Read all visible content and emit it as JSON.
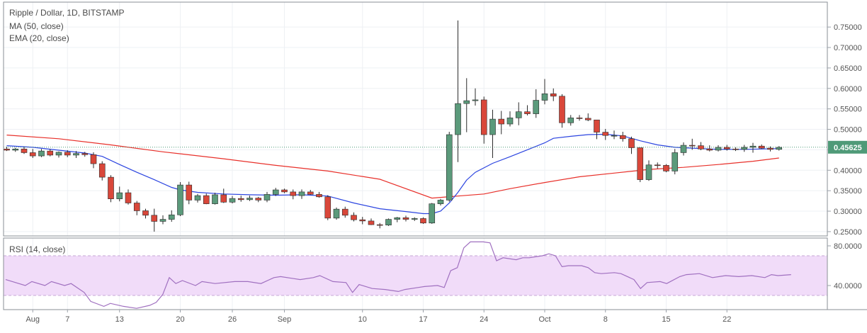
{
  "header": {
    "title": "Ripple / Dollar, 1D, BITSTAMP",
    "ma_label": "MA (50, close)",
    "ema_label": "EMA (20, close)",
    "rsi_label": "RSI (14, close)"
  },
  "colors": {
    "up": "#5b9a7b",
    "down": "#d9473a",
    "ma": "#e8302a",
    "ema": "#2c45e0",
    "rsi": "#a070c0",
    "rsi_band": "#f1dcf9",
    "price_badge": "#4f9a78"
  },
  "chart_data": [
    {
      "type": "candlestick",
      "title": "Ripple / Dollar, 1D, BITSTAMP",
      "ylim": [
        0.215,
        0.775
      ],
      "y_ticks": [
        "0.75000",
        "0.70000",
        "0.65000",
        "0.60000",
        "0.55000",
        "0.50000",
        "0.45000",
        "0.40000",
        "0.35000",
        "0.30000",
        "0.25000"
      ],
      "last_price": "0.45625",
      "x_labels": [
        {
          "label": "Aug",
          "day": 3
        },
        {
          "label": "7",
          "day": 7
        },
        {
          "label": "13",
          "day": 13
        },
        {
          "label": "20",
          "day": 20
        },
        {
          "label": "26",
          "day": 26
        },
        {
          "label": "Sep",
          "day": 32
        },
        {
          "label": "10",
          "day": 41
        },
        {
          "label": "17",
          "day": 48
        },
        {
          "label": "24",
          "day": 55
        },
        {
          "label": "Oct",
          "day": 62
        },
        {
          "label": "8",
          "day": 69
        },
        {
          "label": "15",
          "day": 76
        },
        {
          "label": "22",
          "day": 83
        }
      ],
      "ohlc": [
        [
          0.452,
          0.457,
          0.447,
          0.449
        ],
        [
          0.449,
          0.455,
          0.445,
          0.452
        ],
        [
          0.452,
          0.457,
          0.44,
          0.443
        ],
        [
          0.443,
          0.452,
          0.43,
          0.435
        ],
        [
          0.435,
          0.452,
          0.432,
          0.447
        ],
        [
          0.447,
          0.452,
          0.434,
          0.437
        ],
        [
          0.437,
          0.446,
          0.431,
          0.444
        ],
        [
          0.444,
          0.449,
          0.432,
          0.437
        ],
        [
          0.437,
          0.447,
          0.43,
          0.441
        ],
        [
          0.441,
          0.445,
          0.433,
          0.438
        ],
        [
          0.438,
          0.444,
          0.405,
          0.416
        ],
        [
          0.416,
          0.422,
          0.375,
          0.383
        ],
        [
          0.383,
          0.388,
          0.322,
          0.33
        ],
        [
          0.33,
          0.36,
          0.324,
          0.345
        ],
        [
          0.345,
          0.353,
          0.316,
          0.32
        ],
        [
          0.32,
          0.325,
          0.29,
          0.301
        ],
        [
          0.301,
          0.306,
          0.282,
          0.29
        ],
        [
          0.29,
          0.306,
          0.25,
          0.275
        ],
        [
          0.275,
          0.29,
          0.268,
          0.28
        ],
        [
          0.28,
          0.302,
          0.274,
          0.291
        ],
        [
          0.291,
          0.371,
          0.288,
          0.364
        ],
        [
          0.364,
          0.372,
          0.317,
          0.327
        ],
        [
          0.327,
          0.342,
          0.321,
          0.338
        ],
        [
          0.338,
          0.343,
          0.317,
          0.318
        ],
        [
          0.318,
          0.345,
          0.316,
          0.34
        ],
        [
          0.34,
          0.355,
          0.32,
          0.322
        ],
        [
          0.322,
          0.337,
          0.319,
          0.331
        ],
        [
          0.331,
          0.338,
          0.323,
          0.328
        ],
        [
          0.328,
          0.338,
          0.325,
          0.332
        ],
        [
          0.332,
          0.335,
          0.322,
          0.327
        ],
        [
          0.327,
          0.347,
          0.322,
          0.341
        ],
        [
          0.341,
          0.357,
          0.337,
          0.352
        ],
        [
          0.352,
          0.355,
          0.344,
          0.347
        ],
        [
          0.347,
          0.353,
          0.329,
          0.338
        ],
        [
          0.338,
          0.353,
          0.33,
          0.347
        ],
        [
          0.347,
          0.352,
          0.34,
          0.341
        ],
        [
          0.341,
          0.347,
          0.333,
          0.335
        ],
        [
          0.335,
          0.339,
          0.278,
          0.283
        ],
        [
          0.283,
          0.309,
          0.279,
          0.305
        ],
        [
          0.305,
          0.311,
          0.284,
          0.29
        ],
        [
          0.29,
          0.297,
          0.275,
          0.279
        ],
        [
          0.279,
          0.286,
          0.268,
          0.276
        ],
        [
          0.276,
          0.282,
          0.266,
          0.267
        ],
        [
          0.267,
          0.271,
          0.258,
          0.266
        ],
        [
          0.266,
          0.282,
          0.264,
          0.28
        ],
        [
          0.28,
          0.286,
          0.273,
          0.284
        ],
        [
          0.284,
          0.289,
          0.275,
          0.28
        ],
        [
          0.28,
          0.285,
          0.276,
          0.282
        ],
        [
          0.282,
          0.285,
          0.269,
          0.271
        ],
        [
          0.271,
          0.32,
          0.269,
          0.318
        ],
        [
          0.318,
          0.33,
          0.314,
          0.327
        ],
        [
          0.327,
          0.494,
          0.323,
          0.487
        ],
        [
          0.487,
          0.766,
          0.42,
          0.563
        ],
        [
          0.563,
          0.625,
          0.493,
          0.57
        ],
        [
          0.57,
          0.6,
          0.558,
          0.572
        ],
        [
          0.572,
          0.58,
          0.465,
          0.487
        ],
        [
          0.487,
          0.548,
          0.43,
          0.525
        ],
        [
          0.525,
          0.545,
          0.488,
          0.513
        ],
        [
          0.513,
          0.544,
          0.507,
          0.528
        ],
        [
          0.528,
          0.566,
          0.51,
          0.543
        ],
        [
          0.543,
          0.559,
          0.534,
          0.538
        ],
        [
          0.538,
          0.598,
          0.528,
          0.571
        ],
        [
          0.571,
          0.623,
          0.561,
          0.587
        ],
        [
          0.587,
          0.6,
          0.569,
          0.581
        ],
        [
          0.581,
          0.586,
          0.504,
          0.516
        ],
        [
          0.516,
          0.535,
          0.509,
          0.528
        ],
        [
          0.528,
          0.535,
          0.521,
          0.527
        ],
        [
          0.527,
          0.539,
          0.52,
          0.523
        ],
        [
          0.523,
          0.523,
          0.476,
          0.493
        ],
        [
          0.493,
          0.501,
          0.474,
          0.485
        ],
        [
          0.485,
          0.497,
          0.476,
          0.485
        ],
        [
          0.485,
          0.494,
          0.47,
          0.477
        ],
        [
          0.477,
          0.482,
          0.44,
          0.455
        ],
        [
          0.455,
          0.455,
          0.371,
          0.377
        ],
        [
          0.377,
          0.424,
          0.374,
          0.413
        ],
        [
          0.413,
          0.419,
          0.404,
          0.412
        ],
        [
          0.412,
          0.415,
          0.395,
          0.398
        ],
        [
          0.398,
          0.452,
          0.39,
          0.443
        ],
        [
          0.443,
          0.468,
          0.436,
          0.461
        ],
        [
          0.461,
          0.477,
          0.45,
          0.46
        ],
        [
          0.46,
          0.469,
          0.449,
          0.452
        ],
        [
          0.452,
          0.461,
          0.446,
          0.449
        ],
        [
          0.449,
          0.461,
          0.446,
          0.456
        ],
        [
          0.456,
          0.462,
          0.448,
          0.452
        ],
        [
          0.452,
          0.456,
          0.447,
          0.451
        ],
        [
          0.451,
          0.462,
          0.445,
          0.456
        ],
        [
          0.456,
          0.467,
          0.443,
          0.459
        ],
        [
          0.459,
          0.463,
          0.452,
          0.454
        ],
        [
          0.454,
          0.458,
          0.446,
          0.451
        ],
        [
          0.451,
          0.459,
          0.448,
          0.456
        ]
      ],
      "series": [
        {
          "name": "MA (50, close)",
          "points": [
            [
              0,
              0.486
            ],
            [
              6,
              0.477
            ],
            [
              12,
              0.462
            ],
            [
              18,
              0.445
            ],
            [
              25,
              0.428
            ],
            [
              31,
              0.412
            ],
            [
              37,
              0.398
            ],
            [
              43,
              0.378
            ],
            [
              49,
              0.332
            ],
            [
              52,
              0.337
            ],
            [
              55,
              0.342
            ],
            [
              58,
              0.355
            ],
            [
              62,
              0.37
            ],
            [
              66,
              0.384
            ],
            [
              70,
              0.393
            ],
            [
              74,
              0.402
            ],
            [
              78,
              0.407
            ],
            [
              82,
              0.414
            ],
            [
              86,
              0.422
            ],
            [
              89,
              0.43
            ]
          ]
        },
        {
          "name": "EMA (20, close)",
          "points": [
            [
              0,
              0.46
            ],
            [
              3,
              0.456
            ],
            [
              6,
              0.449
            ],
            [
              9,
              0.442
            ],
            [
              11,
              0.434
            ],
            [
              13,
              0.414
            ],
            [
              15,
              0.395
            ],
            [
              17,
              0.377
            ],
            [
              19,
              0.358
            ],
            [
              20,
              0.352
            ],
            [
              22,
              0.346
            ],
            [
              25,
              0.342
            ],
            [
              28,
              0.34
            ],
            [
              31,
              0.339
            ],
            [
              34,
              0.34
            ],
            [
              37,
              0.337
            ],
            [
              40,
              0.32
            ],
            [
              43,
              0.306
            ],
            [
              46,
              0.299
            ],
            [
              48,
              0.294
            ],
            [
              49,
              0.294
            ],
            [
              50,
              0.3
            ],
            [
              51,
              0.32
            ],
            [
              52,
              0.346
            ],
            [
              53,
              0.376
            ],
            [
              54,
              0.395
            ],
            [
              56,
              0.417
            ],
            [
              58,
              0.433
            ],
            [
              60,
              0.45
            ],
            [
              62,
              0.467
            ],
            [
              63,
              0.478
            ],
            [
              65,
              0.483
            ],
            [
              67,
              0.487
            ],
            [
              69,
              0.488
            ],
            [
              71,
              0.484
            ],
            [
              73,
              0.472
            ],
            [
              75,
              0.462
            ],
            [
              77,
              0.456
            ],
            [
              79,
              0.454
            ],
            [
              82,
              0.451
            ],
            [
              85,
              0.451
            ],
            [
              89,
              0.453
            ]
          ]
        }
      ]
    },
    {
      "type": "line",
      "title": "RSI (14, close)",
      "ylim": [
        14,
        88
      ],
      "y_ticks": [
        "80.0000",
        "40.0000"
      ],
      "band": [
        70,
        30
      ],
      "series": [
        {
          "name": "RSI (14, close)",
          "points": [
            [
              0,
              46
            ],
            [
              3,
              40
            ],
            [
              4,
              44
            ],
            [
              6,
              40
            ],
            [
              7,
              44
            ],
            [
              9,
              40
            ],
            [
              10,
              42
            ],
            [
              12,
              33
            ],
            [
              13,
              24
            ],
            [
              15,
              19
            ],
            [
              16,
              22
            ],
            [
              18,
              19
            ],
            [
              20,
              17
            ],
            [
              22,
              20
            ],
            [
              23,
              23
            ],
            [
              24,
              31
            ],
            [
              25,
              48
            ],
            [
              26,
              42
            ],
            [
              27,
              45
            ],
            [
              29,
              40
            ],
            [
              30,
              44
            ],
            [
              32,
              42
            ],
            [
              35,
              44
            ],
            [
              37,
              44
            ],
            [
              39,
              42
            ],
            [
              41,
              48
            ],
            [
              42,
              49
            ],
            [
              44,
              47
            ],
            [
              45,
              46
            ],
            [
              47,
              48
            ],
            [
              48,
              50
            ],
            [
              50,
              44
            ],
            [
              52,
              43
            ],
            [
              53,
              33
            ],
            [
              54,
              41
            ],
            [
              56,
              37
            ],
            [
              58,
              36
            ],
            [
              59,
              35
            ],
            [
              60,
              34
            ],
            [
              61,
              36
            ],
            [
              63,
              38
            ],
            [
              64,
              39
            ],
            [
              66,
              40
            ],
            [
              67,
              38
            ],
            [
              68,
              55
            ],
            [
              69,
              58
            ],
            [
              70,
              78
            ],
            [
              71,
              84
            ],
            [
              73,
              84
            ],
            [
              74,
              83
            ],
            [
              75,
              65
            ],
            [
              76,
              68
            ],
            [
              78,
              66
            ],
            [
              79,
              68
            ],
            [
              80,
              68
            ],
            [
              82,
              70
            ],
            [
              83,
              72
            ],
            [
              84,
              70
            ],
            [
              85,
              59
            ],
            [
              86,
              60
            ],
            [
              88,
              60
            ],
            [
              89,
              58
            ],
            [
              90,
              53
            ],
            [
              91,
              52
            ],
            [
              93,
              53
            ],
            [
              94,
              52
            ],
            [
              96,
              46
            ],
            [
              97,
              37
            ],
            [
              98,
              43
            ],
            [
              100,
              44
            ],
            [
              101,
              42
            ],
            [
              103,
              49
            ],
            [
              104,
              51
            ],
            [
              106,
              52
            ],
            [
              108,
              48
            ],
            [
              110,
              50
            ],
            [
              112,
              49
            ],
            [
              114,
              50
            ],
            [
              116,
              48
            ],
            [
              117,
              51
            ],
            [
              118,
              50
            ],
            [
              120,
              51
            ]
          ]
        }
      ]
    }
  ]
}
